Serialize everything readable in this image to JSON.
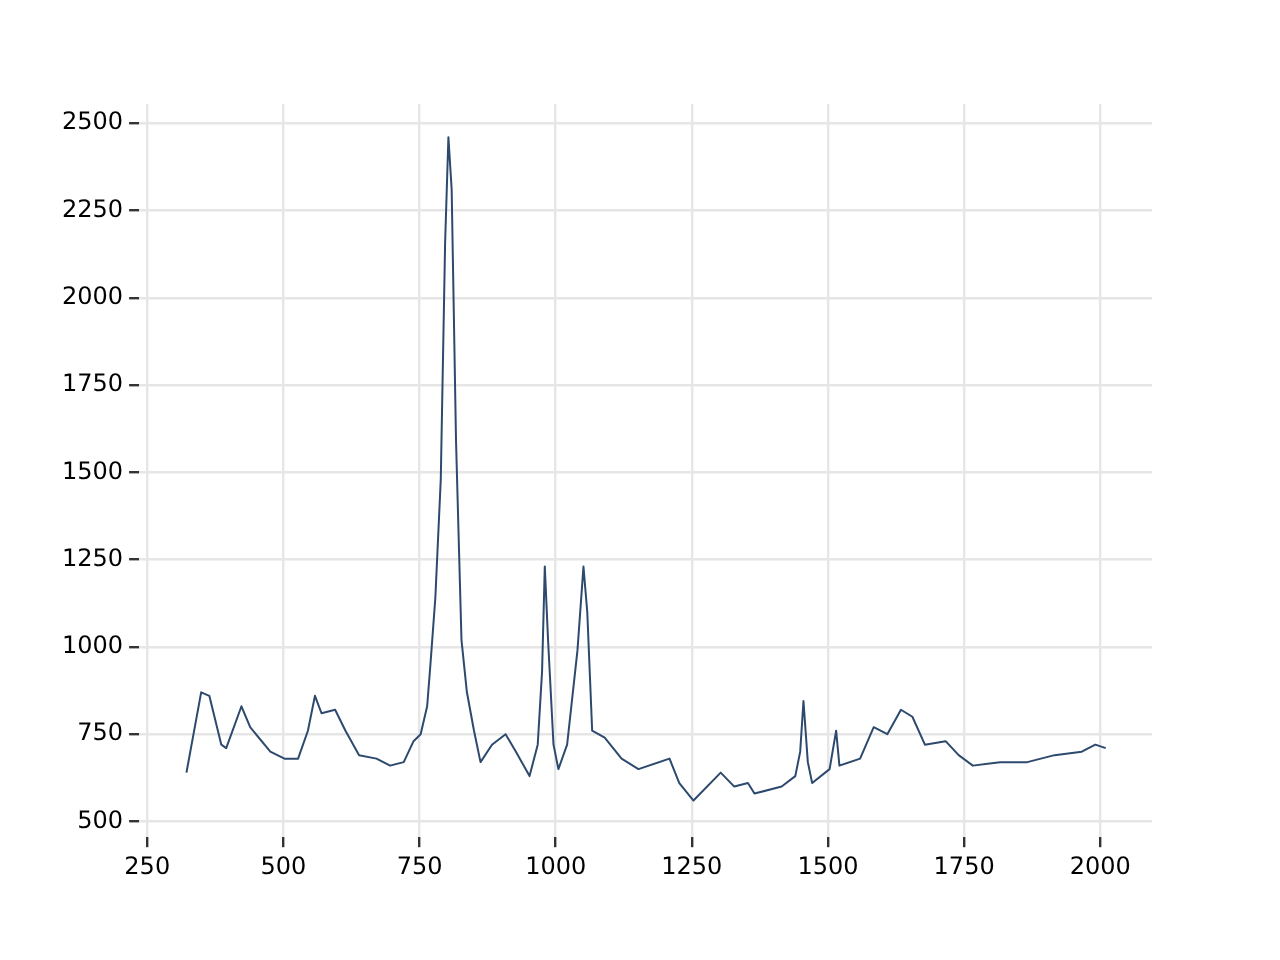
{
  "chart_data": {
    "type": "line",
    "color": "#2d4a6e",
    "x": [
      322,
      349,
      364,
      386,
      395,
      423,
      439,
      476,
      502,
      527,
      545,
      558,
      570,
      595,
      614,
      639,
      671,
      696,
      721,
      739,
      752,
      764,
      770,
      779,
      789,
      797,
      803,
      809,
      817,
      827,
      837,
      850,
      862,
      883,
      908,
      927,
      952,
      967,
      975,
      980,
      986,
      996,
      1005,
      1021,
      1040,
      1051,
      1058,
      1067,
      1090,
      1121,
      1152,
      1209,
      1227,
      1253,
      1303,
      1328,
      1353,
      1365,
      1415,
      1440,
      1449,
      1455,
      1463,
      1471,
      1503,
      1515,
      1521,
      1559,
      1584,
      1609,
      1634,
      1655,
      1678,
      1716,
      1740,
      1766,
      1816,
      1866,
      1916,
      1966,
      1991,
      2010
    ],
    "values": [
      640,
      870,
      860,
      720,
      710,
      830,
      770,
      700,
      680,
      680,
      760,
      860,
      810,
      820,
      760,
      690,
      680,
      660,
      670,
      730,
      750,
      830,
      950,
      1140,
      1480,
      2160,
      2460,
      2310,
      1590,
      1020,
      870,
      760,
      670,
      720,
      750,
      700,
      630,
      720,
      930,
      1230,
      1020,
      720,
      650,
      720,
      990,
      1230,
      1100,
      760,
      740,
      680,
      650,
      680,
      610,
      560,
      640,
      600,
      610,
      580,
      600,
      630,
      700,
      845,
      670,
      610,
      650,
      760,
      660,
      680,
      770,
      750,
      820,
      800,
      720,
      730,
      690,
      660,
      670,
      670,
      690,
      700,
      720,
      710
    ],
    "xlim": [
      235,
      2095
    ],
    "ylim": [
      455,
      2555
    ],
    "xticks": [
      250,
      500,
      750,
      1000,
      1250,
      1500,
      1750,
      2000
    ],
    "yticks": [
      500,
      750,
      1000,
      1250,
      1500,
      1750,
      2000,
      2250,
      2500
    ],
    "grid": true
  }
}
